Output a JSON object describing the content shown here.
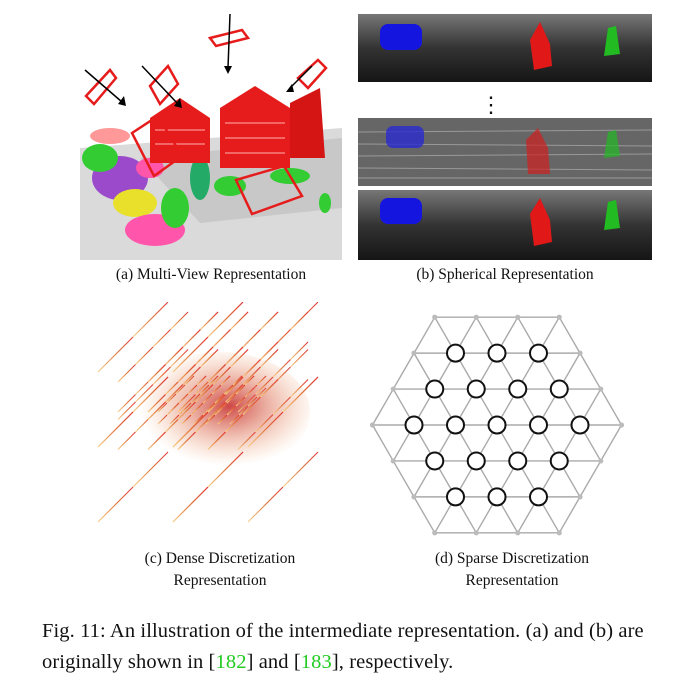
{
  "panels": {
    "a": {
      "caption": "(a) Multi-View Representation"
    },
    "b": {
      "caption": "(b) Spherical Representation",
      "ellipsis": "⋮"
    },
    "c": {
      "caption_line1": "(c) Dense Discretization",
      "caption_line2": "Representation"
    },
    "d": {
      "caption_line1": "(d) Sparse Discretization",
      "caption_line2": "Representation"
    }
  },
  "figure_caption": {
    "part1": "Fig. 11: An illustration of the intermediate representation. (a) and (b) are originally shown in [",
    "ref1": "182",
    "part2": "] and [",
    "ref2": "183",
    "part3": "], respectively."
  },
  "colors": {
    "red": "#e01818",
    "blue": "#1515e0",
    "green": "#22bb22",
    "ref_green": "#22cc22"
  }
}
